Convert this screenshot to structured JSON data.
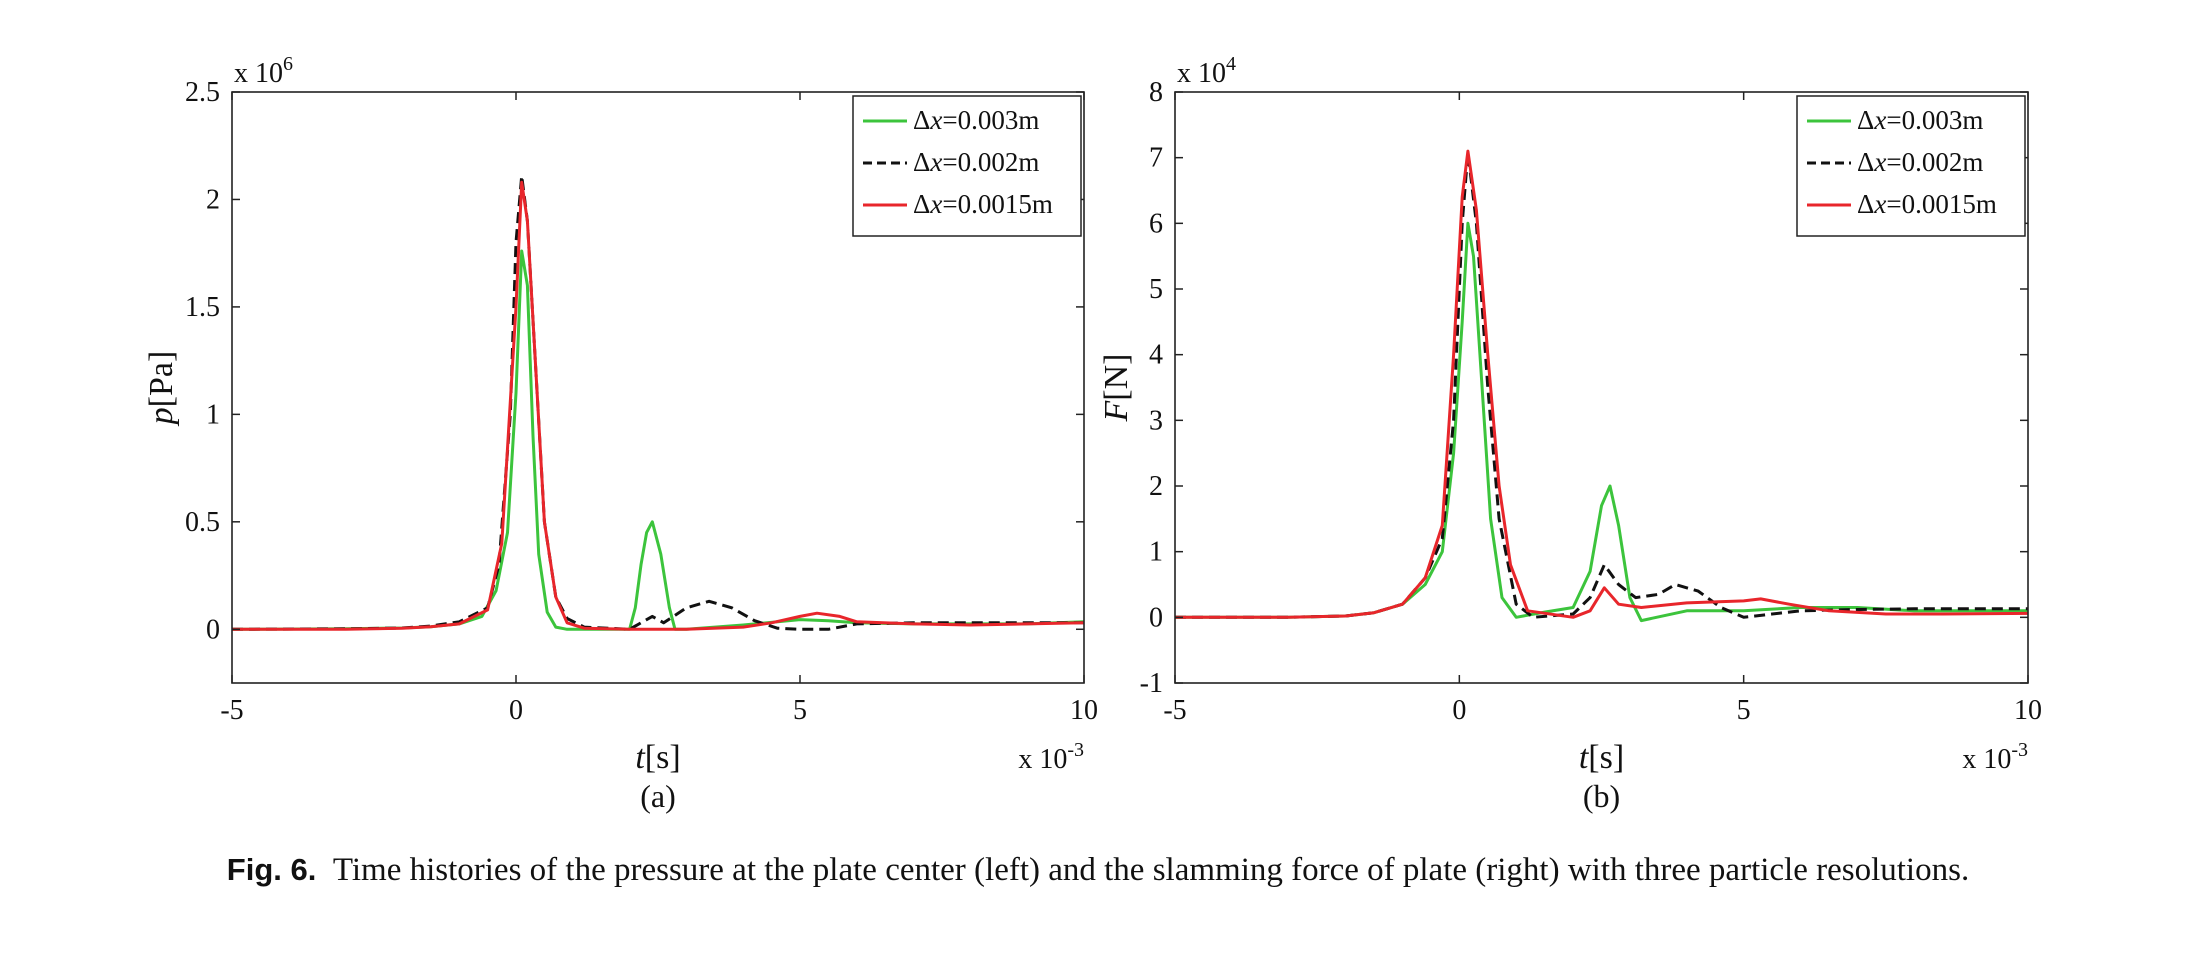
{
  "caption": {
    "label": "Fig. 6.",
    "text": "Time histories of the pressure at the plate center (left) and the slamming force of plate (right) with three particle resolutions."
  },
  "colors": {
    "green": "#3cc43c",
    "black": "#111111",
    "red": "#e8262b"
  },
  "chart_data": [
    {
      "type": "line",
      "panel_label": "(a)",
      "ylabel": "p[Pa]",
      "xlabel": "t[s]",
      "x_multiplier": "x 10-3",
      "y_multiplier": "x 106",
      "xlim": [
        -5,
        10
      ],
      "ylim": [
        -250000,
        2500000
      ],
      "xticks": [
        -5,
        0,
        5,
        10
      ],
      "yticks": [
        0,
        500000,
        1000000,
        1500000,
        2000000,
        2500000
      ],
      "xtick_labels": [
        "-5",
        "0",
        "5",
        "10"
      ],
      "ytick_labels": [
        "0",
        "0.5",
        "1",
        "1.5",
        "2",
        "2.5"
      ],
      "grid": false,
      "legend_position": "top-right",
      "series": [
        {
          "name": "Δx=0.003m",
          "color": "#3cc43c",
          "dash": "solid",
          "x": [
            -5,
            -3,
            -2,
            -1.5,
            -1,
            -0.6,
            -0.35,
            -0.15,
            0,
            0.1,
            0.2,
            0.3,
            0.4,
            0.55,
            0.7,
            0.9,
            1.5,
            2.0,
            2.1,
            2.2,
            2.3,
            2.4,
            2.55,
            2.7,
            2.8,
            3.0,
            4.0,
            5.0,
            5.5,
            6.0,
            7.0,
            8.0,
            9.0,
            10.0
          ],
          "y": [
            0,
            2000,
            6000,
            12000,
            25000,
            60000,
            180000,
            450000,
            1100000,
            1760000,
            1600000,
            900000,
            350000,
            80000,
            10000,
            0,
            0,
            0,
            100000,
            300000,
            450000,
            500000,
            350000,
            100000,
            0,
            0,
            20000,
            45000,
            40000,
            30000,
            25000,
            25000,
            25000,
            35000
          ]
        },
        {
          "name": "Δx=0.002m",
          "color": "#111111",
          "dash": "dashed",
          "x": [
            -5,
            -3,
            -2,
            -1.5,
            -1,
            -0.5,
            -0.3,
            -0.1,
            0,
            0.1,
            0.2,
            0.35,
            0.5,
            0.7,
            0.9,
            1.2,
            2.0,
            2.2,
            2.4,
            2.6,
            3.0,
            3.4,
            3.8,
            4.2,
            4.6,
            5.0,
            5.5,
            6.0,
            7.0,
            8.0,
            9.0,
            10.0
          ],
          "y": [
            0,
            2000,
            6000,
            15000,
            35000,
            100000,
            300000,
            1000000,
            1800000,
            2110000,
            1900000,
            1200000,
            500000,
            150000,
            50000,
            10000,
            0,
            30000,
            60000,
            30000,
            100000,
            130000,
            100000,
            40000,
            5000,
            0,
            0,
            25000,
            30000,
            30000,
            30000,
            30000
          ]
        },
        {
          "name": "Δx=0.0015m",
          "color": "#e8262b",
          "dash": "solid",
          "x": [
            -5,
            -3,
            -2,
            -1.5,
            -1,
            -0.5,
            -0.25,
            0,
            0.1,
            0.2,
            0.35,
            0.5,
            0.7,
            0.9,
            1.2,
            2.0,
            3.0,
            4.0,
            4.5,
            5.0,
            5.3,
            5.7,
            6.0,
            7.0,
            8.0,
            9.0,
            10.0
          ],
          "y": [
            0,
            0,
            5000,
            12000,
            25000,
            90000,
            400000,
            1500000,
            2080000,
            1900000,
            1200000,
            500000,
            150000,
            30000,
            5000,
            0,
            0,
            10000,
            30000,
            60000,
            75000,
            60000,
            35000,
            25000,
            20000,
            25000,
            30000
          ]
        }
      ]
    },
    {
      "type": "line",
      "panel_label": "(b)",
      "ylabel": "F[N]",
      "xlabel": "t[s]",
      "x_multiplier": "x 10-3",
      "y_multiplier": "x 104",
      "xlim": [
        -5,
        10
      ],
      "ylim": [
        -10000,
        80000
      ],
      "xticks": [
        -5,
        0,
        5,
        10
      ],
      "yticks": [
        -10000,
        0,
        10000,
        20000,
        30000,
        40000,
        50000,
        60000,
        70000,
        80000
      ],
      "xtick_labels": [
        "-5",
        "0",
        "5",
        "10"
      ],
      "ytick_labels": [
        "-1",
        "0",
        "1",
        "2",
        "3",
        "4",
        "5",
        "6",
        "7",
        "8"
      ],
      "grid": false,
      "legend_position": "top-right",
      "series": [
        {
          "name": "Δx=0.003m",
          "color": "#3cc43c",
          "dash": "solid",
          "x": [
            -5,
            -3,
            -2,
            -1.5,
            -1,
            -0.6,
            -0.3,
            -0.1,
            0.05,
            0.15,
            0.25,
            0.4,
            0.55,
            0.75,
            1.0,
            1.5,
            2.0,
            2.3,
            2.5,
            2.65,
            2.8,
            3.0,
            3.2,
            4.0,
            5.0,
            6.0,
            7.0,
            8.0,
            9.0,
            10.0
          ],
          "y": [
            0,
            0,
            200,
            700,
            2000,
            5000,
            10000,
            25000,
            45000,
            60000,
            55000,
            35000,
            15000,
            3000,
            0,
            800,
            1500,
            7000,
            17000,
            20000,
            14000,
            3000,
            -500,
            1000,
            1000,
            1500,
            1500,
            1000,
            1000,
            1000
          ]
        },
        {
          "name": "Δx=0.002m",
          "color": "#111111",
          "dash": "dashed",
          "x": [
            -5,
            -3,
            -2,
            -1.5,
            -1,
            -0.6,
            -0.3,
            -0.1,
            0.05,
            0.15,
            0.3,
            0.5,
            0.7,
            1.0,
            1.3,
            2.0,
            2.3,
            2.55,
            2.8,
            3.1,
            3.5,
            3.8,
            4.2,
            4.6,
            5.0,
            6.0,
            7.0,
            8.0,
            9.0,
            10.0
          ],
          "y": [
            0,
            0,
            200,
            700,
            2000,
            6000,
            12000,
            30000,
            60000,
            70800,
            60000,
            35000,
            15000,
            2000,
            0,
            500,
            3000,
            8000,
            5000,
            3000,
            3500,
            5000,
            4000,
            1500,
            0,
            1000,
            1200,
            1300,
            1300,
            1300
          ]
        },
        {
          "name": "Δx=0.0015m",
          "color": "#e8262b",
          "dash": "solid",
          "x": [
            -5,
            -3,
            -2,
            -1.5,
            -1,
            -0.6,
            -0.3,
            -0.1,
            0.05,
            0.15,
            0.3,
            0.5,
            0.7,
            0.9,
            1.2,
            2.0,
            2.3,
            2.55,
            2.8,
            3.2,
            4.0,
            5.0,
            5.3,
            5.8,
            6.5,
            7.5,
            8.5,
            10.0
          ],
          "y": [
            0,
            0,
            200,
            700,
            2000,
            6000,
            14000,
            40000,
            64000,
            71000,
            62000,
            40000,
            20000,
            8000,
            1000,
            0,
            1000,
            4500,
            2000,
            1500,
            2200,
            2500,
            2800,
            2000,
            1000,
            500,
            500,
            600
          ]
        }
      ]
    }
  ]
}
